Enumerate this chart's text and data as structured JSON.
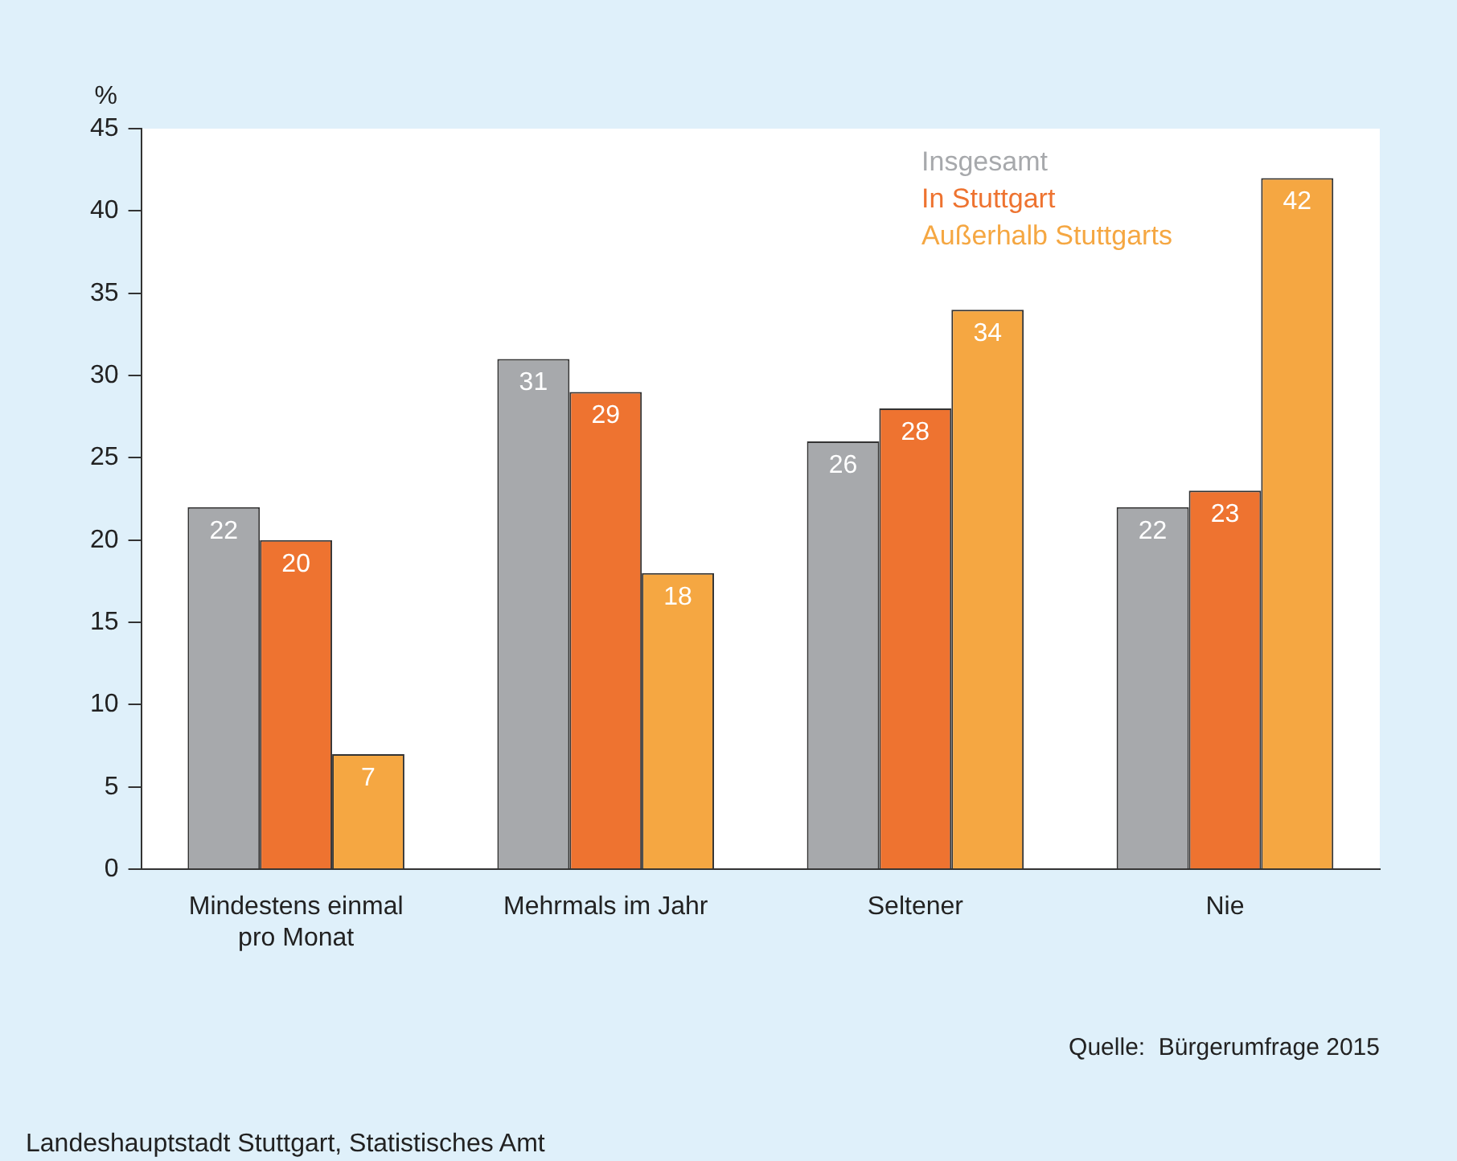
{
  "chart_data": {
    "type": "bar",
    "ylabel": "%",
    "categories": [
      "Mindestens einmal pro Monat",
      "Mehrmals im Jahr",
      "Seltener",
      "Nie"
    ],
    "series": [
      {
        "name": "Insgesamt",
        "color": "#a7a9ac",
        "values": [
          22,
          31,
          26,
          22
        ]
      },
      {
        "name": "In Stuttgart",
        "color": "#ee7330",
        "values": [
          20,
          29,
          28,
          23
        ]
      },
      {
        "name": "Außerhalb Stuttgarts",
        "color": "#f5a742",
        "values": [
          7,
          18,
          34,
          42
        ]
      }
    ],
    "ylim": [
      0,
      45
    ],
    "yticks": [
      0,
      5,
      10,
      15,
      20,
      25,
      30,
      35,
      40,
      45
    ],
    "grid": false,
    "legend": "top right",
    "data_labels": true,
    "annotations": [
      "Quelle:  Bürgerumfrage 2015",
      "Landeshauptstadt Stuttgart, Statistisches Amt"
    ]
  }
}
